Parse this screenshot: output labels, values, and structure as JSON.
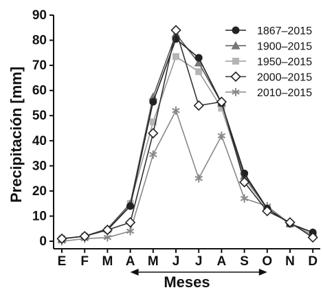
{
  "chart_data": {
    "type": "line",
    "categories": [
      "E",
      "F",
      "M",
      "A",
      "M",
      "J",
      "J",
      "A",
      "S",
      "O",
      "N",
      "D"
    ],
    "yticks": [
      0,
      10,
      20,
      30,
      40,
      50,
      60,
      70,
      80,
      90
    ],
    "ylim": [
      -3,
      90
    ],
    "xlabel": "Meses",
    "ylabel": "Precipitación [mm]",
    "grid": false,
    "legend_position": "top-right",
    "annotation": "double-headed arrow under A–O",
    "series": [
      {
        "name": "1867–2015",
        "marker": "circle",
        "color": "#222222",
        "line_color": "#222222",
        "values": [
          1,
          2,
          4.5,
          14,
          55.5,
          80.5,
          73,
          55,
          27,
          13,
          7,
          3.5
        ]
      },
      {
        "name": "1900–2015",
        "marker": "triangle",
        "color": "#777777",
        "line_color": "#555555",
        "values": [
          1,
          2,
          5,
          15,
          57.5,
          82.5,
          71,
          55,
          26,
          13,
          7,
          3.5
        ]
      },
      {
        "name": "1950–2015",
        "marker": "square",
        "color": "#b5b5b5",
        "line_color": "#999999",
        "values": [
          1,
          2,
          4.5,
          15,
          47.5,
          73.5,
          67.5,
          53,
          25,
          13,
          7,
          2.5
        ]
      },
      {
        "name": "2000–2015",
        "marker": "diamond",
        "color": "#222222",
        "line_color": "#333333",
        "values": [
          1,
          2,
          4.5,
          7.5,
          43,
          84,
          54,
          55.5,
          23.5,
          12,
          7.5,
          1.5
        ]
      },
      {
        "name": "2010–2015",
        "marker": "asterisk",
        "color": "#888888",
        "line_color": "#888888",
        "values": [
          0,
          1,
          1.5,
          4,
          34.5,
          52,
          25,
          42,
          17,
          14,
          7,
          2.5
        ]
      }
    ]
  }
}
